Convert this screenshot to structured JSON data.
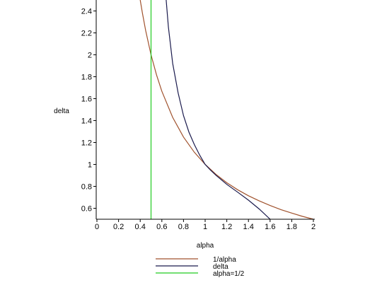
{
  "chart_data": {
    "type": "line",
    "xlabel": "alpha",
    "ylabel": "delta",
    "xlim": [
      0,
      2
    ],
    "ylim": [
      0.5,
      2.5
    ],
    "x_ticks": [
      "0",
      "0.2",
      "0.4",
      "0.6",
      "0.8",
      "1",
      "1.2",
      "1.4",
      "1.6",
      "1.8",
      "2"
    ],
    "y_ticks": [
      "0.6",
      "0.8",
      "1",
      "1.2",
      "1.4",
      "1.6",
      "1.8",
      "2",
      "2.2",
      "2.4"
    ],
    "grid": false,
    "legend_position": "bottom",
    "series": [
      {
        "name": "1/alpha",
        "color": "#a0522d",
        "x": [
          0.4,
          0.42,
          0.45,
          0.5,
          0.55,
          0.6,
          0.7,
          0.8,
          0.9,
          1.0,
          1.1,
          1.2,
          1.3,
          1.4,
          1.5,
          1.6,
          1.7,
          1.8,
          1.9,
          2.0
        ],
        "y": [
          2.5,
          2.381,
          2.222,
          2.0,
          1.818,
          1.667,
          1.429,
          1.25,
          1.111,
          1.0,
          0.909,
          0.833,
          0.769,
          0.714,
          0.667,
          0.625,
          0.588,
          0.556,
          0.526,
          0.5
        ]
      },
      {
        "name": "delta",
        "color": "#1a1a4d",
        "x": [
          0.64,
          0.66,
          0.7,
          0.75,
          0.8,
          0.85,
          0.9,
          0.95,
          1.0,
          1.05,
          1.1,
          1.2,
          1.3,
          1.4,
          1.5,
          1.6
        ],
        "y": [
          2.5,
          2.256,
          1.922,
          1.652,
          1.445,
          1.296,
          1.181,
          1.083,
          1.0,
          0.948,
          0.901,
          0.818,
          0.747,
          0.674,
          0.593,
          0.5
        ]
      },
      {
        "name": "alpha=1/2",
        "color": "#22cc22",
        "x": [
          0.5,
          0.5
        ],
        "y": [
          0.5,
          2.5
        ]
      }
    ]
  }
}
